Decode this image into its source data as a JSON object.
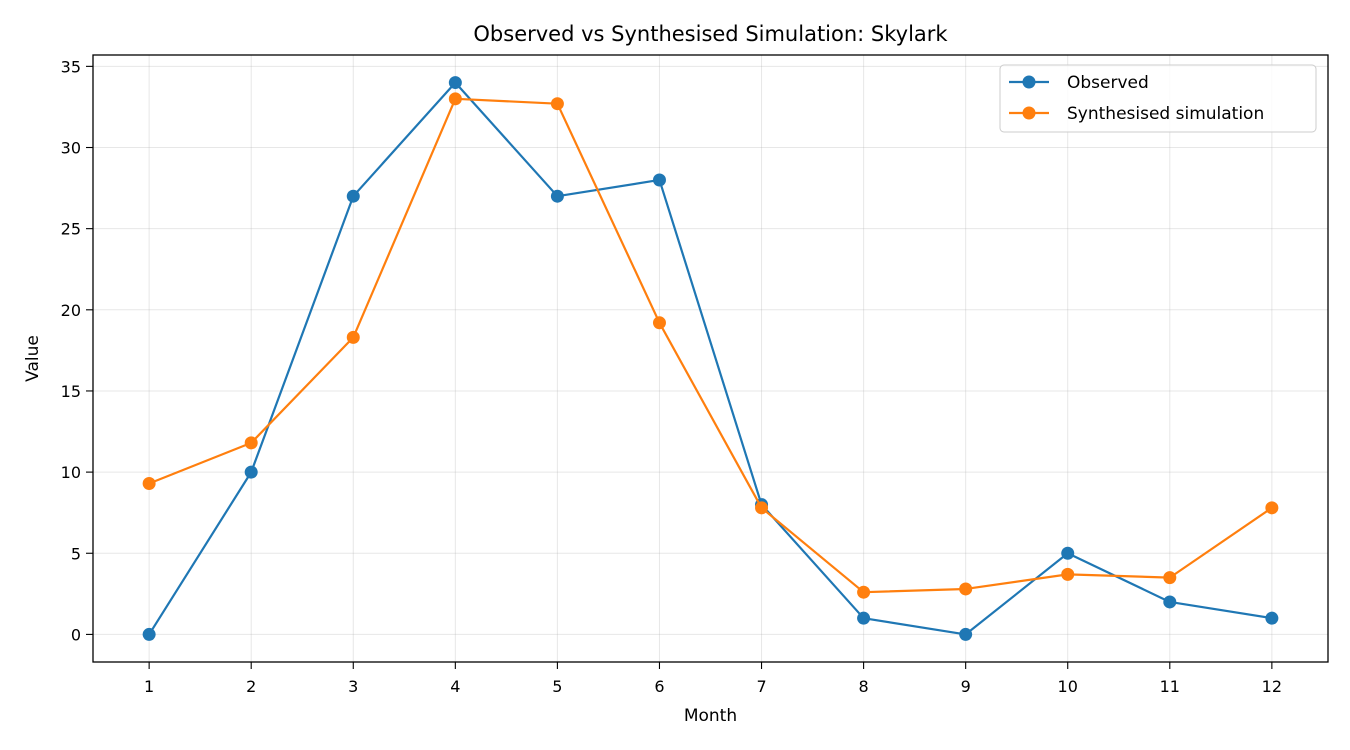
{
  "chart_data": {
    "type": "line",
    "title": "Observed vs Synthesised Simulation: Skylark",
    "xlabel": "Month",
    "ylabel": "Value",
    "x": [
      1,
      2,
      3,
      4,
      5,
      6,
      7,
      8,
      9,
      10,
      11,
      12
    ],
    "x_ticks": [
      "1",
      "2",
      "3",
      "4",
      "5",
      "6",
      "7",
      "8",
      "9",
      "10",
      "11",
      "12"
    ],
    "y_ticks": [
      "0",
      "5",
      "10",
      "15",
      "20",
      "25",
      "30",
      "35"
    ],
    "xlim": [
      0.45,
      12.55
    ],
    "ylim": [
      -1.7,
      35.7
    ],
    "grid": true,
    "legend_position": "top-right",
    "series": [
      {
        "name": "Observed",
        "color": "#1f77b4",
        "values": [
          0,
          10,
          27,
          34,
          27,
          28,
          8,
          1,
          0,
          5,
          2,
          1
        ]
      },
      {
        "name": "Synthesised simulation",
        "color": "#ff7f0e",
        "values": [
          9.3,
          11.8,
          18.3,
          33.0,
          32.7,
          19.2,
          7.8,
          2.6,
          2.8,
          3.7,
          3.5,
          7.8
        ]
      }
    ]
  }
}
